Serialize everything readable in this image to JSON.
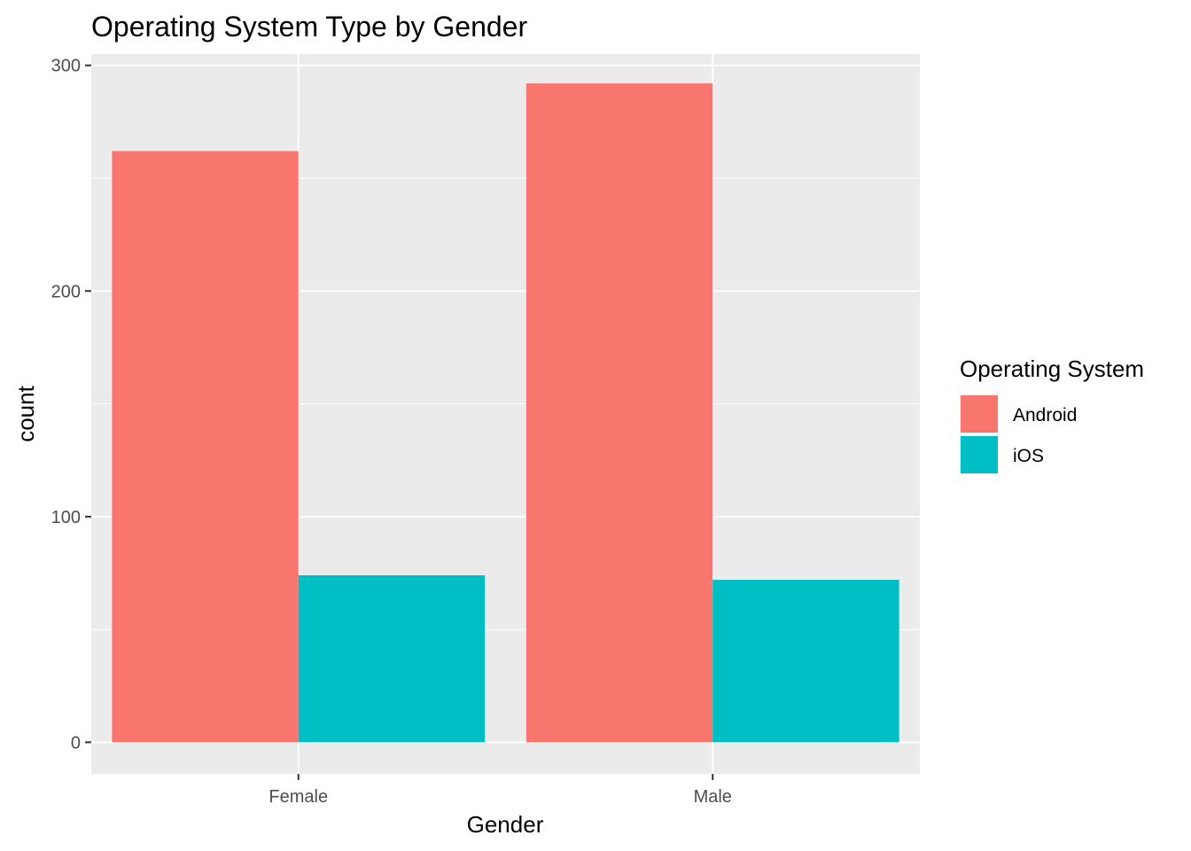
{
  "chart_data": {
    "type": "bar",
    "title": "Operating System Type by Gender",
    "xlabel": "Gender",
    "ylabel": "count",
    "categories": [
      "Female",
      "Male"
    ],
    "series": [
      {
        "name": "Android",
        "values": [
          262,
          292
        ],
        "color": "#F8766D"
      },
      {
        "name": "iOS",
        "values": [
          74,
          72
        ],
        "color": "#00BFC4"
      }
    ],
    "ylim": [
      -14,
      305
    ],
    "yticks": [
      0,
      100,
      200,
      300
    ],
    "ytick_labels": [
      "0",
      "100",
      "200",
      "300"
    ],
    "grid": true,
    "panel_background": "#EBEBEB",
    "legend": {
      "title": "Operating System",
      "placement": "right",
      "entries": [
        "Android",
        "iOS"
      ]
    }
  }
}
